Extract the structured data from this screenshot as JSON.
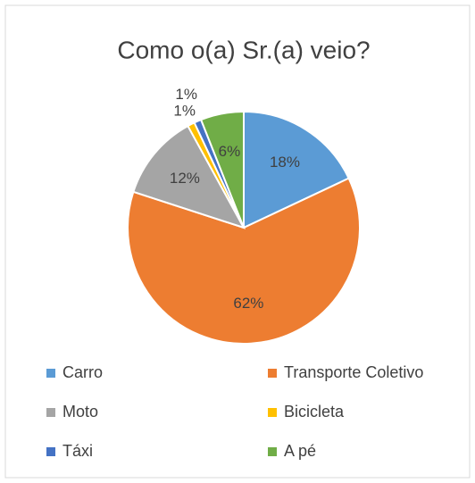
{
  "chart_data": {
    "type": "pie",
    "title": "Como o(a) Sr.(a) veio?",
    "categories": [
      "Carro",
      "Transporte Coletivo",
      "Moto",
      "Bicicleta",
      "Táxi",
      "A pé"
    ],
    "values": [
      18,
      62,
      12,
      1,
      1,
      6
    ],
    "value_labels": [
      "18%",
      "62%",
      "12%",
      "1%",
      "1%",
      "6%"
    ],
    "colors": [
      "#5b9bd5",
      "#ed7d31",
      "#a5a5a5",
      "#ffc000",
      "#4472c4",
      "#70ad47"
    ],
    "legend": "bottom"
  }
}
